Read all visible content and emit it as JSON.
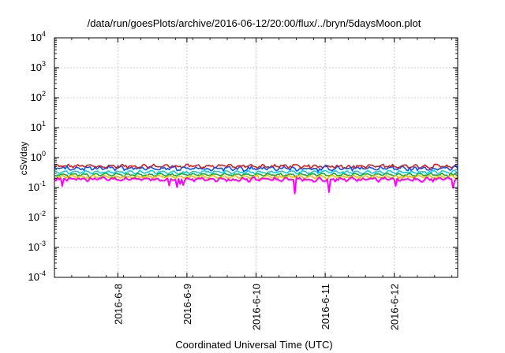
{
  "chart_data": {
    "type": "line",
    "title": "/data/run/goesPlots/archive/2016-06-12/20:00/flux/../bryn/5daysMoon.plot",
    "xlabel": "Coordinated Universal Time (UTC)",
    "ylabel": "cSv/day",
    "yscale": "log",
    "ylim": [
      0.0001,
      10000
    ],
    "xlim": [
      "2016-06-07 02:00",
      "2016-06-12 22:00"
    ],
    "x_ticks": [
      "2016-6-8",
      "2016-6-9",
      "2016-6-10",
      "2016-6-11",
      "2016-6-12"
    ],
    "y_ticks": [
      {
        "base": "10",
        "exp": "-4"
      },
      {
        "base": "10",
        "exp": "-3"
      },
      {
        "base": "10",
        "exp": "-2"
      },
      {
        "base": "10",
        "exp": "-1"
      },
      {
        "base": "10",
        "exp": "0"
      },
      {
        "base": "10",
        "exp": "1"
      },
      {
        "base": "10",
        "exp": "2"
      },
      {
        "base": "10",
        "exp": "3"
      },
      {
        "base": "10",
        "exp": "4"
      }
    ],
    "grid": true,
    "series": [
      {
        "color": "#e41a1c",
        "level": 0.52,
        "noise": 0.1,
        "dips": 0.1
      },
      {
        "color": "#0055ff",
        "level": 0.44,
        "noise": 0.12,
        "dips": 0.15
      },
      {
        "color": "#00d8d8",
        "level": 0.33,
        "noise": 0.06,
        "dips": 0.1
      },
      {
        "color": "#22aa22",
        "level": 0.27,
        "noise": 0.05,
        "dips": 0.15
      },
      {
        "color": "#ffb000",
        "level": 0.23,
        "noise": 0.05,
        "dips": 0.2
      },
      {
        "color": "#ff00ff",
        "level": 0.19,
        "noise": 0.1,
        "dips": 0.7
      }
    ]
  }
}
